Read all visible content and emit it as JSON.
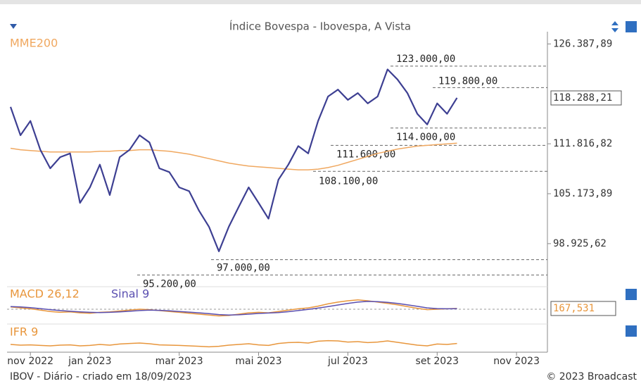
{
  "chart_data": {
    "type": "line",
    "title": "Índice Bovespa - Ibovespa, A Vista",
    "footer_left": "IBOV - Diário - criado em 18/09/2023",
    "footer_right": "© 2023 Broadcast",
    "categories": [
      null,
      null,
      "nov 2022",
      null,
      null,
      null,
      null,
      null,
      "jan 2023",
      null,
      null,
      null,
      null,
      null,
      null,
      null,
      null,
      "mar 2023",
      null,
      null,
      null,
      null,
      null,
      null,
      null,
      "mai 2023",
      null,
      null,
      null,
      null,
      null,
      null,
      null,
      null,
      "jul 2023",
      null,
      null,
      null,
      null,
      null,
      null,
      null,
      null,
      "set 2023",
      null,
      null,
      null,
      null,
      null,
      null,
      null,
      "nov 2023",
      null,
      null
    ],
    "log_scale": true,
    "ylim": [
      94000,
      128300
    ],
    "yticks": [
      {
        "value": 126387.89,
        "label": "126.387,89"
      },
      {
        "value": 111816.82,
        "label": "111.816,82"
      },
      {
        "value": 105173.89,
        "label": "105.173,89"
      },
      {
        "value": 98925.62,
        "label": "98.925,62"
      }
    ],
    "current": {
      "value": 118288.21,
      "label": "118.288,21"
    },
    "levels": [
      {
        "value": 123000,
        "label": "123.000,00"
      },
      {
        "value": 119800,
        "label": "119.800,00"
      },
      {
        "value": 114000,
        "label": "114.000,00"
      },
      {
        "value": 111600,
        "label": "111.600,00"
      },
      {
        "value": 108100,
        "label": "108.100,00"
      },
      {
        "value": 97000,
        "label": "97.000,00"
      },
      {
        "value": 95200,
        "label": "95.200,00"
      }
    ],
    "series": [
      {
        "name": "MME200",
        "color": "#f0a860",
        "values": [
          111200,
          111000,
          110900,
          110800,
          110700,
          110700,
          110700,
          110700,
          110700,
          110800,
          110800,
          110900,
          110900,
          111000,
          111000,
          110900,
          110800,
          110600,
          110400,
          110100,
          109800,
          109500,
          109200,
          109000,
          108800,
          108700,
          108600,
          108500,
          108400,
          108300,
          108300,
          108400,
          108600,
          108900,
          109300,
          109700,
          110100,
          110500,
          110800,
          111100,
          111300,
          111500,
          111600,
          111700,
          111800,
          111900,
          null,
          null,
          null,
          null,
          null,
          null,
          null,
          null
        ]
      },
      {
        "name": "IBOV",
        "color": "#3d3f92",
        "values": [
          117000,
          113000,
          115000,
          111000,
          108500,
          110000,
          110500,
          104000,
          106000,
          109000,
          105000,
          110000,
          111000,
          113000,
          112000,
          108500,
          108000,
          106000,
          105500,
          103000,
          101000,
          98000,
          101000,
          103500,
          106000,
          104000,
          102000,
          107000,
          109000,
          111500,
          110500,
          115000,
          118500,
          119500,
          118000,
          119000,
          117500,
          118500,
          122500,
          121000,
          119000,
          116000,
          114500,
          117500,
          116000,
          118300,
          null,
          null,
          null,
          null,
          null,
          null,
          null,
          null
        ]
      }
    ],
    "macd": {
      "ylim": [
        -3000,
        3000
      ],
      "current": {
        "value": 167.531,
        "label": "167,531"
      },
      "series": [
        {
          "name": "MACD 26,12",
          "color": "#e8963c",
          "values": [
            500,
            300,
            100,
            -200,
            -500,
            -700,
            -600,
            -800,
            -900,
            -700,
            -600,
            -400,
            -200,
            0,
            -100,
            -300,
            -500,
            -700,
            -900,
            -1100,
            -1300,
            -1500,
            -1400,
            -1100,
            -800,
            -700,
            -800,
            -500,
            -200,
            100,
            300,
            700,
            1200,
            1600,
            1900,
            2100,
            1900,
            1600,
            1300,
            1000,
            600,
            200,
            -100,
            0,
            100,
            167.531,
            null,
            null,
            null,
            null,
            null,
            null,
            null,
            null
          ]
        },
        {
          "name": "Sinal 9",
          "color": "#5a4fb0",
          "values": [
            600,
            500,
            350,
            150,
            -100,
            -300,
            -450,
            -600,
            -700,
            -750,
            -700,
            -600,
            -450,
            -300,
            -200,
            -250,
            -350,
            -500,
            -650,
            -800,
            -1000,
            -1200,
            -1300,
            -1250,
            -1100,
            -950,
            -850,
            -750,
            -550,
            -300,
            -50,
            250,
            600,
            950,
            1300,
            1600,
            1750,
            1700,
            1550,
            1300,
            1000,
            650,
            300,
            150,
            100,
            120,
            null,
            null,
            null,
            null,
            null,
            null,
            null,
            null
          ]
        }
      ]
    },
    "ifr": {
      "ylim": [
        0,
        100
      ],
      "series": [
        {
          "name": "IFR 9",
          "color": "#e8963c",
          "values": [
            45,
            40,
            42,
            38,
            35,
            40,
            42,
            35,
            38,
            45,
            40,
            48,
            52,
            55,
            50,
            42,
            40,
            38,
            35,
            32,
            28,
            32,
            40,
            45,
            50,
            42,
            38,
            52,
            58,
            60,
            55,
            68,
            72,
            70,
            62,
            65,
            58,
            62,
            70,
            60,
            50,
            40,
            35,
            48,
            45,
            52,
            null,
            null,
            null,
            null,
            null,
            null,
            null,
            null
          ]
        }
      ]
    }
  }
}
